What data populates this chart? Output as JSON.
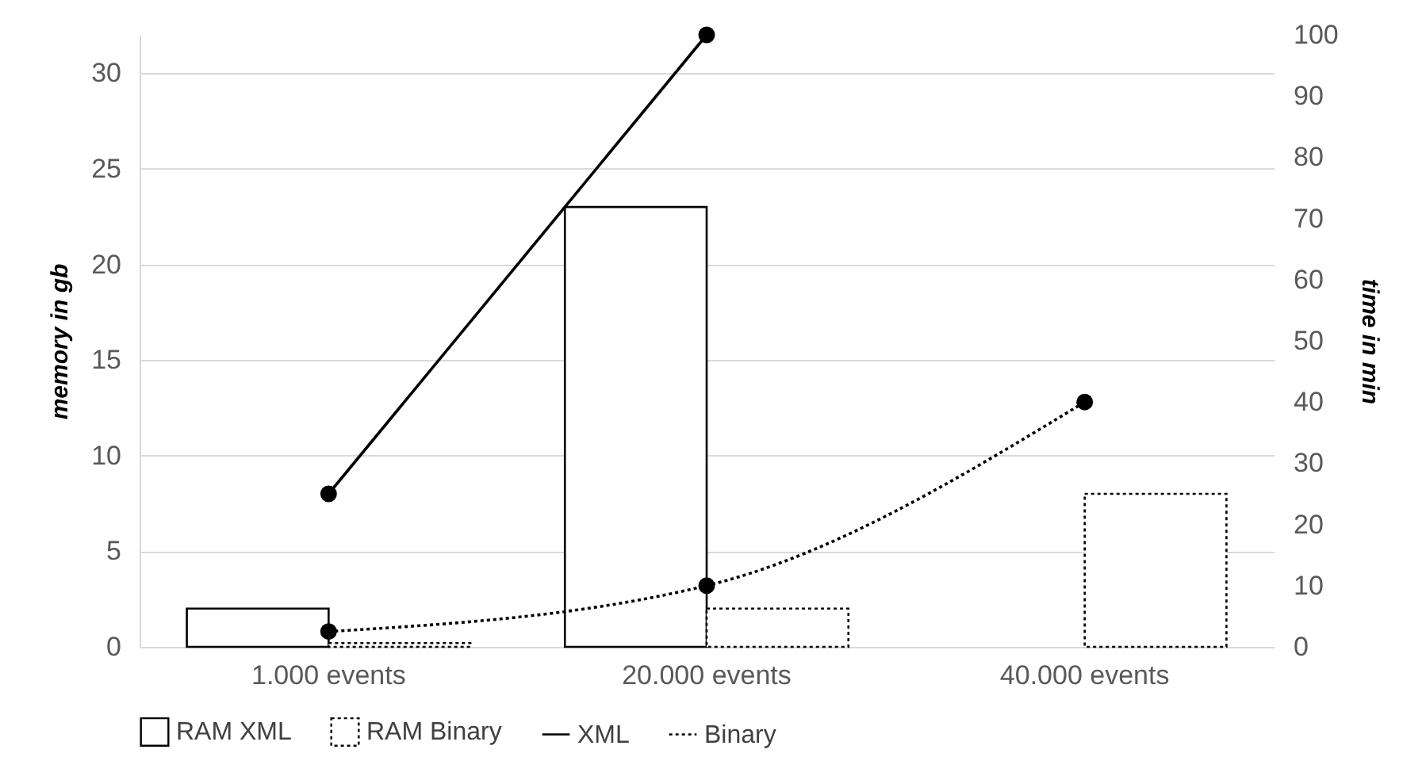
{
  "chart_data": {
    "type": "bar",
    "categories": [
      "1.000 events",
      "20.000 events",
      "40.000 events"
    ],
    "ylabel": "memory in gb",
    "y2label": "time in min",
    "ylim": [
      0,
      32
    ],
    "yticks": [
      0,
      5,
      10,
      15,
      20,
      25,
      30
    ],
    "y2lim": [
      0,
      100
    ],
    "y2ticks": [
      0,
      10,
      20,
      30,
      40,
      50,
      60,
      70,
      80,
      90,
      100
    ],
    "grid": "y",
    "legend": "bottom",
    "marker": "circle",
    "series": [
      {
        "name": "RAM XML",
        "color": "#ffffff",
        "line_style": "solid",
        "values": [
          2,
          23,
          null
        ]
      },
      {
        "name": "RAM Binary",
        "color": "#ffffff",
        "line_style": "dotted",
        "values": [
          0.2,
          2,
          8
        ]
      },
      {
        "name": "XML",
        "type": "line",
        "axis": "y2",
        "color": "#000000",
        "line_style": "solid",
        "values": [
          25,
          100,
          null
        ]
      },
      {
        "name": "Binary",
        "type": "line",
        "axis": "y2",
        "color": "#000000",
        "line_style": "dotted",
        "values": [
          2.5,
          10,
          40
        ]
      }
    ]
  }
}
